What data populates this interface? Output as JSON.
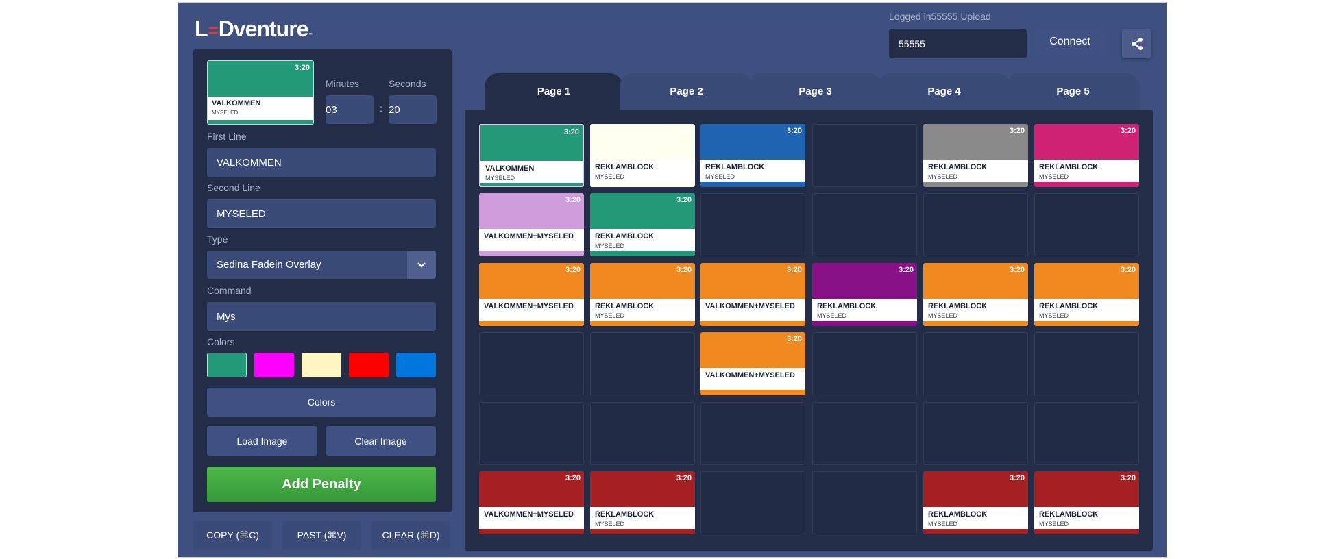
{
  "app": {
    "logo": {
      "left": "L",
      "mark": "=",
      "rest": "Dventure",
      "tm": "™"
    }
  },
  "header": {
    "login_status": "Logged in55555 Upload",
    "code_value": "55555",
    "connect_label": "Connect",
    "share_icon": "share-icon"
  },
  "editor": {
    "preview": {
      "time": "3:20",
      "line1": "VALKOMMEN",
      "line2": "MYSELED",
      "color": "#229a78"
    },
    "minutes_label": "Minutes",
    "minutes_value": "03",
    "seconds_label": "Seconds",
    "seconds_value": "20",
    "time_separator": ":",
    "first_line_label": "First Line",
    "first_line_value": "VALKOMMEN",
    "second_line_label": "Second Line",
    "second_line_value": "MYSELED",
    "type_label": "Type",
    "type_value": "Sedina Fadein Overlay",
    "command_label": "Command",
    "command_value": "Mys",
    "colors_label": "Colors",
    "swatches": [
      "#229a78",
      "#ff00ff",
      "#fff6c2",
      "#ff0000",
      "#0077dd"
    ],
    "colors_button": "Colors",
    "load_image": "Load Image",
    "clear_image": "Clear Image",
    "add_penalty": "Add Penalty",
    "copy": "COPY (⌘C)",
    "paste": "PAST (⌘V)",
    "clear": "CLEAR (⌘D)"
  },
  "tabs": [
    "Page 1",
    "Page 2",
    "Page 3",
    "Page 4",
    "Page 5"
  ],
  "active_tab": "Page 1",
  "grid": [
    [
      {
        "time": "3:20",
        "line1": "VALKOMMEN",
        "line2": "MYSELED",
        "color": "#229a78",
        "selected": true
      },
      {
        "time": "3:20",
        "line1": "REKLAMBLOCK",
        "line2": "MYSELED",
        "color": "#fffff0"
      },
      {
        "time": "3:20",
        "line1": "REKLAMBLOCK",
        "line2": "MYSELED",
        "color": "#1e64b1"
      },
      null,
      {
        "time": "3:20",
        "line1": "REKLAMBLOCK",
        "line2": "MYSELED",
        "color": "#8a8a8a"
      },
      {
        "time": "3:20",
        "line1": "REKLAMBLOCK",
        "line2": "MYSELED",
        "color": "#cf2275"
      }
    ],
    [
      {
        "time": "3:20",
        "line1": "VALKOMMEN+MYSELED",
        "line2": "",
        "color": "#cf9cdc"
      },
      {
        "time": "3:20",
        "line1": "REKLAMBLOCK",
        "line2": "MYSELED",
        "color": "#229a78"
      },
      null,
      null,
      null,
      null
    ],
    [
      {
        "time": "3:20",
        "line1": "VALKOMMEN+MYSELED",
        "line2": "",
        "color": "#f0891f"
      },
      {
        "time": "3:20",
        "line1": "REKLAMBLOCK",
        "line2": "MYSELED",
        "color": "#f0891f"
      },
      {
        "time": "3:20",
        "line1": "VALKOMMEN+MYSELED",
        "line2": "",
        "color": "#f0891f"
      },
      {
        "time": "3:20",
        "line1": "REKLAMBLOCK",
        "line2": "MYSELED",
        "color": "#881188"
      },
      {
        "time": "3:20",
        "line1": "REKLAMBLOCK",
        "line2": "MYSELED",
        "color": "#f0891f"
      },
      {
        "time": "3:20",
        "line1": "REKLAMBLOCK",
        "line2": "MYSELED",
        "color": "#f0891f"
      }
    ],
    [
      null,
      null,
      {
        "time": "3:20",
        "line1": "VALKOMMEN+MYSELED",
        "line2": "",
        "color": "#f0891f"
      },
      null,
      null,
      null
    ],
    [
      null,
      null,
      null,
      null,
      null,
      null
    ],
    [
      {
        "time": "3:20",
        "line1": "VALKOMMEN+MYSELED",
        "line2": "",
        "color": "#a51f23"
      },
      {
        "time": "3:20",
        "line1": "REKLAMBLOCK",
        "line2": "MYSELED",
        "color": "#a51f23"
      },
      null,
      null,
      {
        "time": "3:20",
        "line1": "REKLAMBLOCK",
        "line2": "MYSELED",
        "color": "#a51f23"
      },
      {
        "time": "3:20",
        "line1": "REKLAMBLOCK",
        "line2": "MYSELED",
        "color": "#a51f23"
      }
    ]
  ]
}
